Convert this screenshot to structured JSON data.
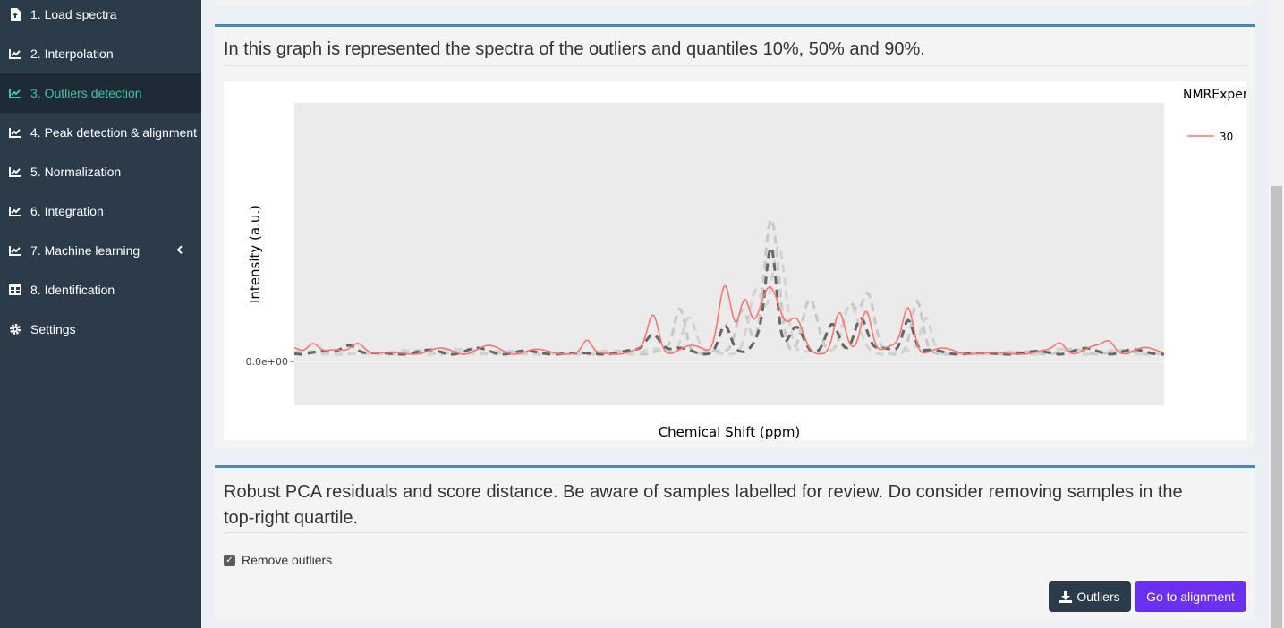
{
  "sidebar": {
    "items": [
      {
        "label": "1. Load spectra",
        "icon": "file-upload-icon",
        "active": false
      },
      {
        "label": "2. Interpolation",
        "icon": "line-chart-icon",
        "active": false
      },
      {
        "label": "3. Outliers detection",
        "icon": "line-chart-icon",
        "active": true
      },
      {
        "label": "4. Peak detection & alignment",
        "icon": "line-chart-icon",
        "active": false
      },
      {
        "label": "5. Normalization",
        "icon": "line-chart-icon",
        "active": false
      },
      {
        "label": "6. Integration",
        "icon": "line-chart-icon",
        "active": false
      },
      {
        "label": "7. Machine learning",
        "icon": "line-chart-icon",
        "active": false,
        "submenu_icon": "chevron-left-icon"
      },
      {
        "label": "8. Identification",
        "icon": "table-icon",
        "active": false
      },
      {
        "label": "Settings",
        "icon": "gear-icon",
        "active": false
      }
    ]
  },
  "spectra_box": {
    "title": "In this graph is represented the spectra of the outliers and quantiles 10%, 50% and 90%."
  },
  "chart_data": {
    "type": "line",
    "xlabel": "Chemical Shift (ppm)",
    "ylabel": "Intensity (a.u.)",
    "y_tick_labels": [
      "0.0e+00"
    ],
    "legend_title": "NMRExper",
    "legend_placement": "top-right",
    "series": [
      {
        "name": "30",
        "color": "#f8766d",
        "style": "solid"
      },
      {
        "color": "#c8c8c8",
        "style": "dashed"
      },
      {
        "color": "#666666",
        "style": "dashed"
      },
      {
        "color": "#d3d3d3",
        "style": "dashed"
      }
    ],
    "note_colors": {
      "panel_background": "#ebebeb"
    }
  },
  "pca_box": {
    "title_line1": "Robust PCA residuals and score distance. Be aware of samples labelled for review. Do consider removing samples in the",
    "title_line2": "top-right quartile.",
    "checkbox_label": "Remove outliers",
    "checkbox_checked": true,
    "download_button": "Outliers",
    "download_icon": "download-icon",
    "next_button": "Go to alignment"
  },
  "colors": {
    "sidebar_bg": "#2c3b4a",
    "active_text": "#3fc5a0",
    "box_border": "#3c8dbc",
    "primary_button": "#6b2ff0"
  }
}
